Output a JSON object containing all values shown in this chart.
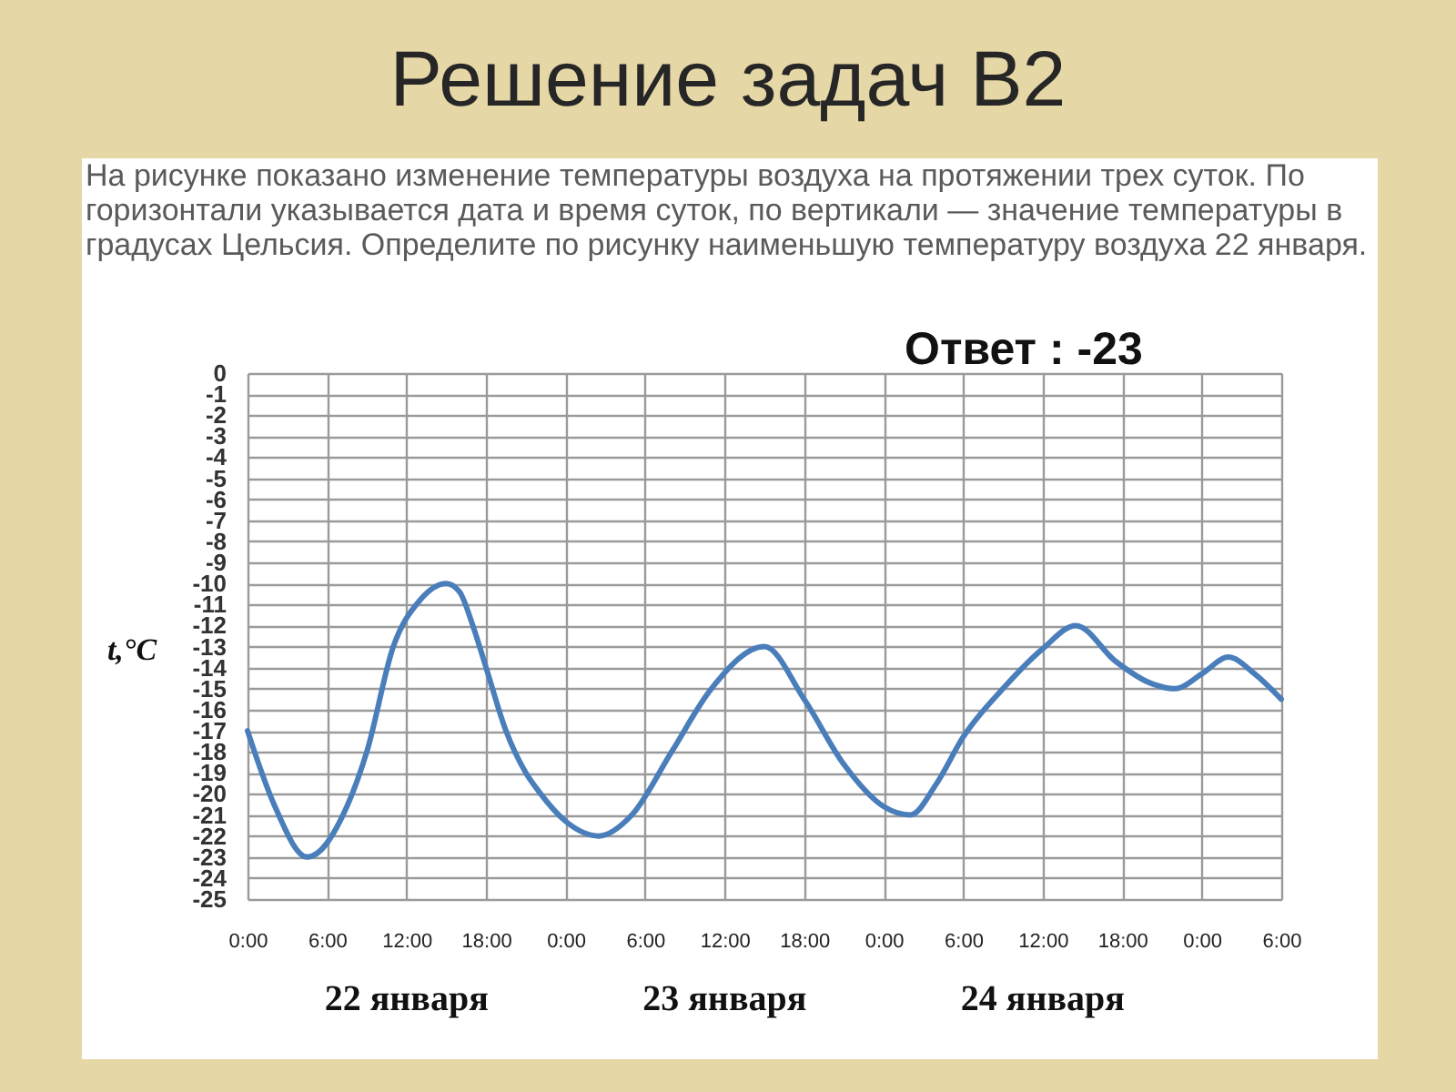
{
  "chart_data": {
    "type": "line",
    "title": "Решение задач В2",
    "subtitle": "На рисунке показано изменение температуры воздуха на протяжении трех суток. По горизонтали указывается дата и время суток, по вертикали — значение температуры в градусах Цельсия. Определите по рисунку наименьшую температуру воздуха 22 января.",
    "ylabel": "t,°C",
    "annotations": [
      "Ответ : -23",
      "22 января",
      "23 января",
      "24 января"
    ],
    "x": [
      "--01-22T00:00",
      "--01-22T02:00",
      "--01-22T04:30",
      "--01-22T07:30",
      "--01-22T09:00",
      "--01-22T11:00",
      "--01-22T13:00",
      "--01-22T15:00",
      "--01-22T16:00",
      "--01-22T17:00",
      "--01-22T18:00",
      "--01-22T19:30",
      "--01-22T21:00",
      "--01-22T22:00",
      "--01-23T00:00",
      "--01-23T02:30",
      "--01-23T05:00",
      "--01-23T08:00",
      "--01-23T11:00",
      "--01-23T15:00",
      "--01-23T18:00",
      "--01-23T21:00",
      "--01-24T00:00",
      "--01-24T02:00",
      "--01-24T04:00",
      "--01-24T06:00",
      "--01-24T09:00",
      "--01-24T12:00",
      "--01-24T14:30",
      "--01-24T17:30",
      "--01-24T20:00",
      "--01-24T22:00",
      "--01-25T00:00",
      "--01-25T02:00",
      "--01-25T04:00",
      "--01-25T06:00"
    ],
    "values": [
      -17,
      -20.5,
      -23,
      -20.6,
      -18,
      -13,
      -10.8,
      -10,
      -10.4,
      -12,
      -14,
      -17,
      -19,
      -19.9,
      -21.3,
      -22,
      -21,
      -18,
      -15,
      -13,
      -15.5,
      -18.6,
      -20.6,
      -21,
      -19.5,
      -17.3,
      -15,
      -13.1,
      -12,
      -13.7,
      -14.7,
      -15,
      -14.3,
      -13.5,
      -14.3,
      -15.5
    ],
    "color": "#4a7ebb",
    "xlim": [
      "--01-22T00:00",
      "--01-25T06:00"
    ],
    "xticks": [
      {
        "value": "--01-22T00:00",
        "label": "0:00"
      },
      {
        "value": "--01-22T06:00",
        "label": "6:00"
      },
      {
        "value": "--01-22T12:00",
        "label": "12:00"
      },
      {
        "value": "--01-22T18:00",
        "label": "18:00"
      },
      {
        "value": "--01-23T00:00",
        "label": "0:00"
      },
      {
        "value": "--01-23T06:00",
        "label": "6:00"
      },
      {
        "value": "--01-23T12:00",
        "label": "12:00"
      },
      {
        "value": "--01-23T18:00",
        "label": "18:00"
      },
      {
        "value": "--01-24T00:00",
        "label": "0:00"
      },
      {
        "value": "--01-24T06:00",
        "label": "6:00"
      },
      {
        "value": "--01-24T12:00",
        "label": "12:00"
      },
      {
        "value": "--01-24T18:00",
        "label": "18:00"
      },
      {
        "value": "--01-25T00:00",
        "label": "0:00"
      },
      {
        "value": "--01-25T06:00",
        "label": "6:00"
      }
    ],
    "ylim": [
      -25,
      0
    ],
    "yticks": [
      0,
      -1,
      -2,
      -3,
      -4,
      -5,
      -6,
      -7,
      -8,
      -9,
      -10,
      -11,
      -12,
      -13,
      -14,
      -15,
      -16,
      -17,
      -18,
      -19,
      -20,
      -21,
      -22,
      -23,
      -24,
      -25
    ],
    "grid": true
  }
}
